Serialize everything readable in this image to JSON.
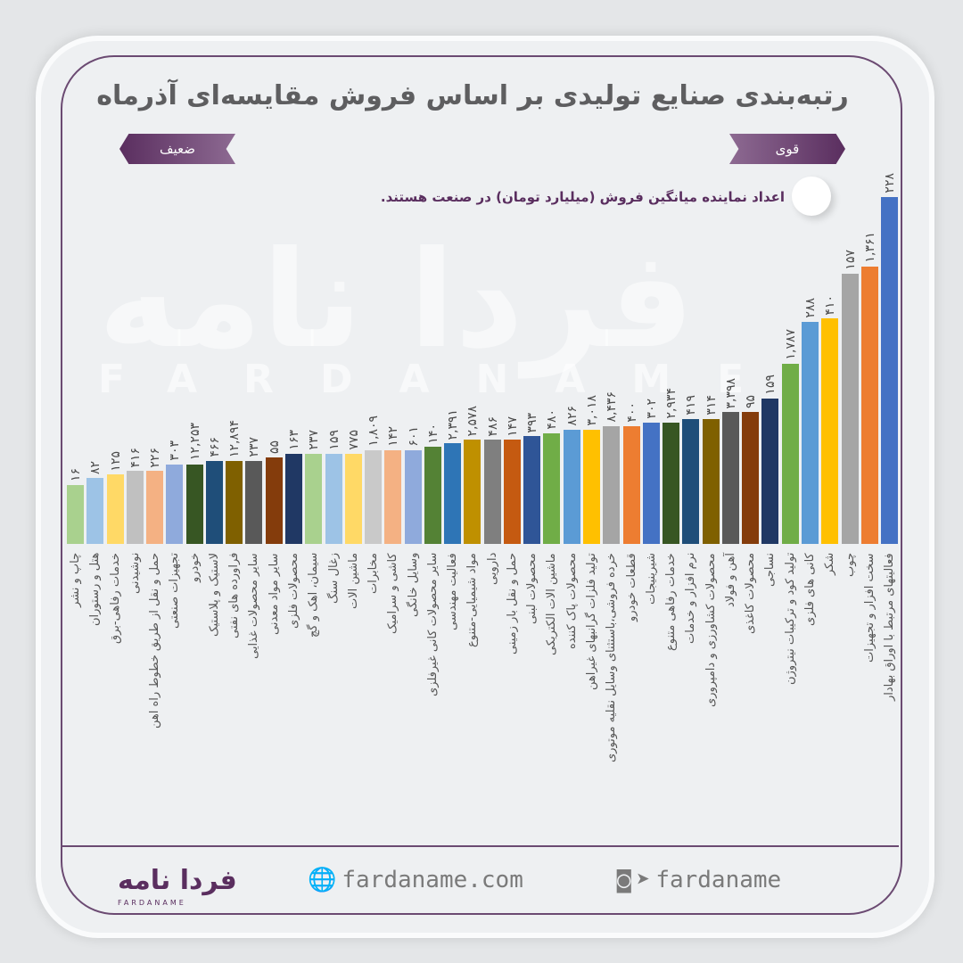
{
  "title": "رتبه‌بندی صنایع تولیدی بر اساس فروش مقایسه‌ای آذرماه",
  "legend": {
    "strong": "قوی",
    "weak": "ضعیف"
  },
  "note": "اعداد نماینده میانگین فروش (میلیارد تومان) در صنعت هستند.",
  "watermark": {
    "logo": "فردا نامه",
    "text": "FARDANAME"
  },
  "footer": {
    "logo": "فردا نامه",
    "logo_sub": "FARDANAME",
    "website": "fardaname.com",
    "social": "fardaname"
  },
  "chart_data": {
    "type": "bar",
    "title": "رتبه‌بندی صنایع تولیدی بر اساس فروش مقایسه‌ای آذرماه",
    "xlabel": "",
    "ylabel": "",
    "ylim": [
      0,
      100
    ],
    "note": "bar heights show relative ranking level (weak → strong); labels show average sales in billion toman",
    "categories": [
      "چاپ و نشر",
      "هتل و رستوران",
      "خدمات رفاهی-برق",
      "نوشیدنی",
      "حمل و نقل از طریق خطوط راه اهن",
      "تجهیزات صنعتی",
      "خودرو",
      "لاستیک و پلاستیک",
      "فراورده های نفتی",
      "سایر محصولات غذایی",
      "سایر مواد معدنی",
      "محصولات فلزی",
      "سیمان، اهک و گچ",
      "زغال سنگ",
      "ماشین الات",
      "مخابرات",
      "کاشی و سرامیک",
      "وسایل خانگی",
      "سایر محصولات کانی غیرفلزی",
      "فعالیت مهندسی",
      "مواد شیمیایی-متنوع",
      "دارویی",
      "حمل و نقل بار زمینی",
      "محصولات لبنی",
      "ماشین الات الکتریکی",
      "محصولات پاک کننده",
      "تولید فلزات گرانبهای غیراهن",
      "خرده فروشی،باستثنای وسایل نقلیه موتوری",
      "قطعات خودرو",
      "شیرینیجات",
      "خدمات رفاهی متنوع",
      "نرم افزار و خدمات",
      "محصولات کشاورزی و دامپروری",
      "آهن و فولاد",
      "محصولات کاغذی",
      "نساجی",
      "تولید کود و ترکیبات نیتروژن",
      "کانی های فلزی",
      "شکر",
      "چوب",
      "سخت افزار و تجهیزات",
      "فعالیتهای مرتبط با اوراق بهادار"
    ],
    "value_labels": [
      "۱۶",
      "۸۲",
      "۱۲۵",
      "۴۱۶",
      "۲۲۶",
      "۳۰۳",
      "۱۲,۲۵۳",
      "۴۶۶",
      "۱۲,۸۹۴",
      "۲۳۷",
      "۵۵",
      "۱۶۳",
      "۲۳۷",
      "۱۵۹",
      "۷۷۵",
      "۱,۸۰۹",
      "۱۴۲",
      "۶۰۱",
      "۱۴۰",
      "۲,۳۹۱",
      "۲,۵۷۸",
      "۴۸۶",
      "۱۴۷",
      "۳۹۳",
      "۴۸۰",
      "۸۲۶",
      "۳,۰۱۸",
      "۸,۴۳۶",
      "۴۰۰",
      "۳۰۲",
      "۲,۹۳۴",
      "۴۱۹",
      "۳۱۴",
      "۳,۳۹۸",
      "۹۵",
      "۱۵۹",
      "۱,۷۸۷",
      "۲۸۸",
      "۴۱۰",
      "۱۵۷",
      "۱,۳۶۱",
      "۲۲۸"
    ],
    "values": [
      16,
      82,
      125,
      416,
      226,
      303,
      12253,
      466,
      12894,
      237,
      55,
      163,
      237,
      159,
      775,
      1809,
      142,
      601,
      140,
      2391,
      2578,
      486,
      147,
      393,
      480,
      826,
      3018,
      8436,
      400,
      302,
      2934,
      419,
      314,
      3398,
      95,
      159,
      1787,
      288,
      410,
      157,
      1361,
      228
    ],
    "relative_level": [
      17,
      19,
      20,
      21,
      21,
      23,
      23,
      24,
      24,
      24,
      25,
      26,
      26,
      26,
      26,
      27,
      27,
      27,
      28,
      29,
      30,
      30,
      30,
      31,
      32,
      33,
      33,
      34,
      34,
      35,
      35,
      36,
      36,
      38,
      38,
      42,
      52,
      64,
      65,
      78,
      80,
      100
    ],
    "colors": [
      "#a9d18e",
      "#9dc3e6",
      "#ffd966",
      "#c0c0c0",
      "#f4b183",
      "#8faadc",
      "#375623",
      "#1f4e79",
      "#7f6000",
      "#595959",
      "#843c0c",
      "#203864",
      "#a9d18e",
      "#9dc3e6",
      "#ffd966",
      "#c9c9c9",
      "#f4b183",
      "#8faadc",
      "#548235",
      "#2e75b6",
      "#bf9000",
      "#7f7f7f",
      "#c55a11",
      "#2f5597",
      "#70ad47",
      "#5b9bd5",
      "#ffc000",
      "#a5a5a5",
      "#ed7d31",
      "#4472c4",
      "#375623",
      "#1f4e79",
      "#7f6000",
      "#595959",
      "#843c0c",
      "#203864",
      "#70ad47",
      "#5b9bd5",
      "#ffc000",
      "#a5a5a5",
      "#ed7d31",
      "#4472c4"
    ]
  }
}
